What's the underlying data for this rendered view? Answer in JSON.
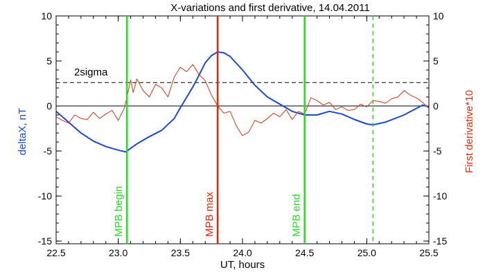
{
  "chart_data": {
    "type": "line",
    "title": "X-variations and first derivative, 14.04.2011",
    "xlabel": "UT, hours",
    "ylabel_left": "deltaX, nT",
    "ylabel_right": "First derivative*10",
    "xlim": [
      22.5,
      25.5
    ],
    "ylim": [
      -15.3,
      10
    ],
    "x_ticks": [
      "22.5",
      "23.0",
      "23.5",
      "24.0",
      "24.5",
      "25.0",
      "25.5"
    ],
    "y_ticks_left": [
      "10",
      "5",
      "0",
      "-5",
      "-10",
      "-15"
    ],
    "y_ticks_right": [
      "10",
      "5",
      "0",
      "-5",
      "-10",
      "-15"
    ],
    "threshold": {
      "label": "2sigma",
      "value": 2.6
    },
    "series": [
      {
        "axis": "left",
        "color": "#1848d8",
        "points": [
          [
            22.5,
            -0.6
          ],
          [
            22.6,
            -1.8
          ],
          [
            22.7,
            -3.0
          ],
          [
            22.8,
            -3.9
          ],
          [
            22.9,
            -4.5
          ],
          [
            23.0,
            -4.9
          ],
          [
            23.06,
            -5.1
          ],
          [
            23.15,
            -4.2
          ],
          [
            23.25,
            -3.4
          ],
          [
            23.35,
            -2.7
          ],
          [
            23.45,
            -1.4
          ],
          [
            23.5,
            -0.2
          ],
          [
            23.6,
            2.1
          ],
          [
            23.65,
            3.4
          ],
          [
            23.7,
            4.8
          ],
          [
            23.75,
            5.6
          ],
          [
            23.8,
            6.0
          ],
          [
            23.85,
            5.9
          ],
          [
            23.9,
            5.5
          ],
          [
            24.0,
            4.0
          ],
          [
            24.1,
            2.3
          ],
          [
            24.2,
            1.0
          ],
          [
            24.3,
            0.2
          ],
          [
            24.4,
            -0.6
          ],
          [
            24.5,
            -1.0
          ],
          [
            24.6,
            -1.0
          ],
          [
            24.7,
            -0.6
          ],
          [
            24.8,
            -0.9
          ],
          [
            24.9,
            -1.5
          ],
          [
            25.0,
            -2.0
          ],
          [
            25.05,
            -2.1
          ],
          [
            25.15,
            -1.8
          ],
          [
            25.3,
            -1.0
          ],
          [
            25.45,
            0.1
          ],
          [
            25.5,
            -0.1
          ]
        ]
      },
      {
        "axis": "right",
        "color": "#e03010",
        "points": [
          [
            22.5,
            -1.2
          ],
          [
            22.55,
            -1.6
          ],
          [
            22.6,
            -1.9
          ],
          [
            22.65,
            -1.0
          ],
          [
            22.7,
            -1.4
          ],
          [
            22.75,
            -1.5
          ],
          [
            22.8,
            -0.7
          ],
          [
            22.85,
            -1.4
          ],
          [
            22.9,
            -0.9
          ],
          [
            22.95,
            -0.5
          ],
          [
            23.0,
            -1.6
          ],
          [
            23.05,
            -0.2
          ],
          [
            23.08,
            1.6
          ],
          [
            23.1,
            2.9
          ],
          [
            23.12,
            1.5
          ],
          [
            23.15,
            3.0
          ],
          [
            23.2,
            1.7
          ],
          [
            23.25,
            1.0
          ],
          [
            23.3,
            2.4
          ],
          [
            23.35,
            2.0
          ],
          [
            23.4,
            1.0
          ],
          [
            23.45,
            3.2
          ],
          [
            23.5,
            4.3
          ],
          [
            23.55,
            3.8
          ],
          [
            23.6,
            4.6
          ],
          [
            23.65,
            3.5
          ],
          [
            23.7,
            2.8
          ],
          [
            23.75,
            1.2
          ],
          [
            23.8,
            0.0
          ],
          [
            23.85,
            -0.8
          ],
          [
            23.9,
            -0.6
          ],
          [
            23.95,
            -2.2
          ],
          [
            24.0,
            -3.3
          ],
          [
            24.05,
            -2.9
          ],
          [
            24.1,
            -1.6
          ],
          [
            24.15,
            -1.9
          ],
          [
            24.2,
            -1.4
          ],
          [
            24.25,
            -0.8
          ],
          [
            24.3,
            -1.2
          ],
          [
            24.35,
            -0.4
          ],
          [
            24.4,
            -1.5
          ],
          [
            24.45,
            -0.6
          ],
          [
            24.5,
            -0.9
          ],
          [
            24.55,
            0.9
          ],
          [
            24.6,
            0.6
          ],
          [
            24.65,
            0.1
          ],
          [
            24.7,
            0.4
          ],
          [
            24.75,
            -0.4
          ],
          [
            24.8,
            -0.1
          ],
          [
            24.85,
            -0.5
          ],
          [
            24.9,
            -0.4
          ],
          [
            24.95,
            0.2
          ],
          [
            25.0,
            -0.1
          ],
          [
            25.05,
            0.6
          ],
          [
            25.1,
            0.5
          ],
          [
            25.15,
            0.3
          ],
          [
            25.2,
            0.8
          ],
          [
            25.25,
            1.0
          ],
          [
            25.3,
            1.7
          ],
          [
            25.35,
            1.2
          ],
          [
            25.4,
            0.9
          ],
          [
            25.45,
            0.4
          ],
          [
            25.5,
            -0.3
          ]
        ]
      }
    ],
    "markers": [
      {
        "x": 23.07,
        "label": "MPB begin",
        "color": "#22dd22",
        "style": "solid"
      },
      {
        "x": 23.8,
        "label": "MPB max",
        "color": "#ee2200",
        "style": "solid"
      },
      {
        "x": 24.5,
        "label": "MPB end",
        "color": "#22dd22",
        "style": "solid"
      },
      {
        "x": 25.05,
        "label": "",
        "color": "#22dd22",
        "style": "dashed"
      }
    ]
  }
}
